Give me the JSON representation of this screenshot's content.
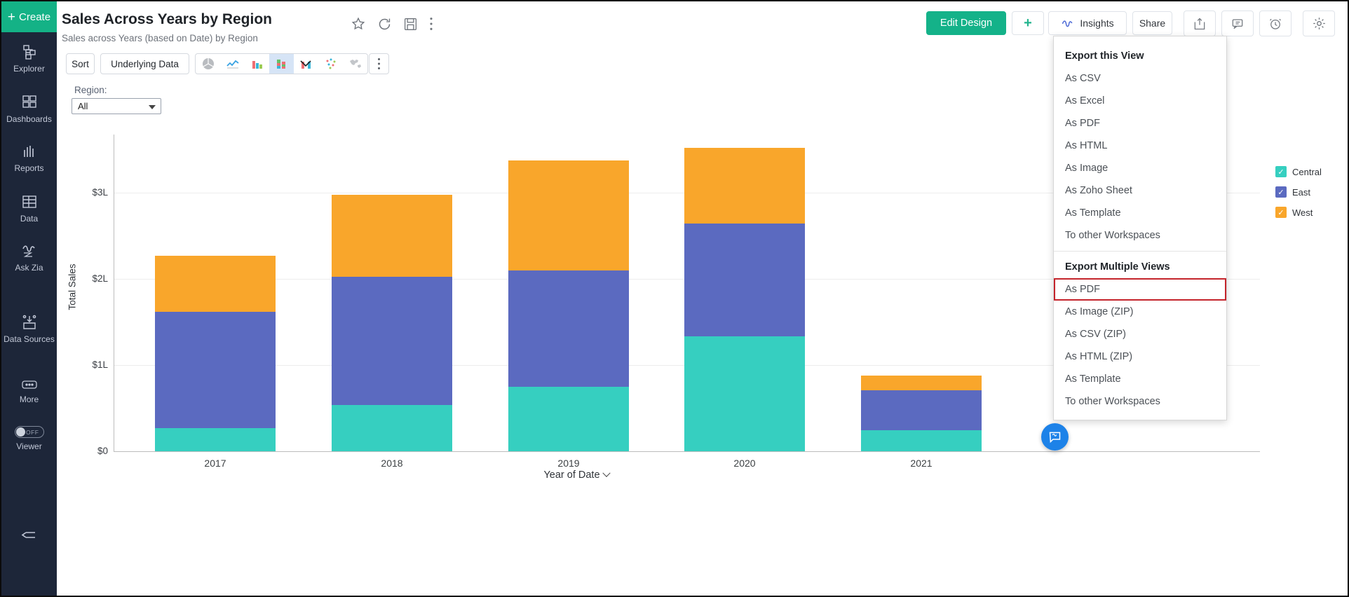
{
  "sidebar": {
    "create_label": "Create",
    "items": [
      {
        "icon": "explorer-tree-icon",
        "label": "Explorer"
      },
      {
        "icon": "dashboards-grid-icon",
        "label": "Dashboards"
      },
      {
        "icon": "reports-bars-icon",
        "label": "Reports"
      },
      {
        "icon": "data-table-icon",
        "label": "Data"
      },
      {
        "icon": "ask-zia-icon",
        "label": "Ask Zia"
      },
      {
        "icon": "data-sources-icon",
        "label": "Data Sources"
      },
      {
        "icon": "more-icon",
        "label": "More"
      }
    ],
    "viewer_toggle": {
      "label": "Viewer",
      "state": "OFF"
    }
  },
  "header": {
    "title": "Sales Across Years by Region",
    "subtitle": "Sales across Years (based on Date) by Region",
    "actions": {
      "edit_design": "Edit Design",
      "add": "+",
      "insights": "Insights",
      "share": "Share"
    }
  },
  "toolbar": {
    "sort_label": "Sort",
    "underlying_data_label": "Underlying Data",
    "chart_types": [
      "pie",
      "line",
      "bar",
      "stacked-bar",
      "combo",
      "scatter",
      "map"
    ],
    "selected_chart_type": "stacked-bar"
  },
  "filter": {
    "label": "Region:",
    "selected_value": "All"
  },
  "export_menu": {
    "sections": [
      {
        "title": "Export this View",
        "items": [
          "As CSV",
          "As Excel",
          "As PDF",
          "As HTML",
          "As Image",
          "As Zoho Sheet",
          "As Template",
          "To other Workspaces"
        ]
      },
      {
        "title": "Export Multiple Views",
        "items": [
          "As PDF",
          "As Image (ZIP)",
          "As CSV (ZIP)",
          "As HTML (ZIP)",
          "As Template",
          "To other Workspaces"
        ],
        "highlighted_item": "As PDF"
      }
    ]
  },
  "chart_data": {
    "type": "bar",
    "stacked": true,
    "categories": [
      "2017",
      "2018",
      "2019",
      "2020",
      "2021"
    ],
    "series": [
      {
        "name": "Central",
        "color": "#36cfc0",
        "values": [
          0.27,
          0.54,
          0.75,
          1.33,
          0.24
        ]
      },
      {
        "name": "East",
        "color": "#5b6ac0",
        "values": [
          1.35,
          1.49,
          1.35,
          1.31,
          0.46
        ]
      },
      {
        "name": "West",
        "color": "#f9a62b",
        "values": [
          0.65,
          0.95,
          1.28,
          0.88,
          0.17
        ]
      }
    ],
    "totals": [
      2.27,
      2.98,
      3.38,
      3.52,
      0.87
    ],
    "unit": "lakhs",
    "ylabel": "Total Sales",
    "xlabel": "Year of Date",
    "y_ticks": [
      {
        "value": 0,
        "label": "$0"
      },
      {
        "value": 1,
        "label": "$1L"
      },
      {
        "value": 2,
        "label": "$2L"
      },
      {
        "value": 3,
        "label": "$3L"
      }
    ],
    "ylim": [
      0,
      3.67
    ],
    "grid": true,
    "legend_position": "right",
    "legend_items": [
      "Central",
      "East",
      "West"
    ]
  },
  "colors": {
    "accent_green": "#14b289",
    "sidebar_bg": "#1d2639",
    "selected_charttype_bg": "#d6e4f6",
    "highlight_red": "#c4242b",
    "chat_blue": "#1d82e8",
    "series_central": "#36cfc0",
    "series_east": "#5b6ac0",
    "series_west": "#f9a62b"
  }
}
